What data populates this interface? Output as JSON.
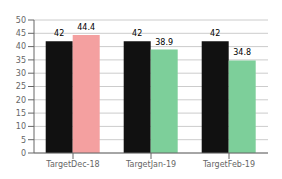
{
  "chart_data": {
    "type": "bar",
    "categories": [
      "TargetDec-18",
      "TargetJan-19",
      "TargetFeb-19"
    ],
    "series": [
      {
        "color": "#111111",
        "values": [
          42,
          42,
          42
        ]
      },
      {
        "colors": [
          "#f4a0a0",
          "#7dcf9a",
          "#7dcf9a"
        ],
        "values": [
          44.4,
          38.9,
          34.8
        ]
      }
    ],
    "ylim": [
      0,
      50
    ],
    "yticks": [
      0,
      5,
      10,
      15,
      20,
      25,
      30,
      35,
      40,
      45,
      50
    ],
    "grid": true,
    "data_labels": true
  }
}
